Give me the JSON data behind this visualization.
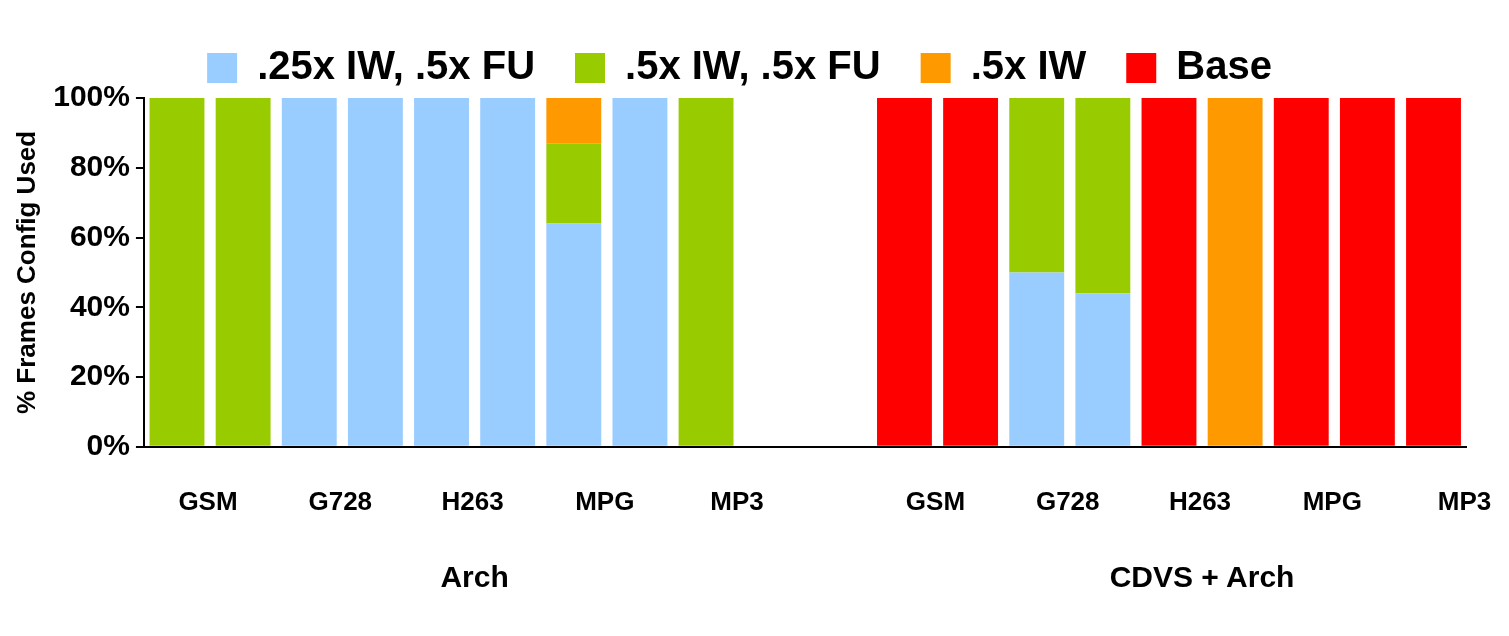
{
  "chart_data": {
    "type": "bar",
    "stacked": true,
    "ylabel": "% Frames Config Used",
    "categories": [
      "GSM",
      null,
      "G728",
      null,
      "H263",
      null,
      "MPG",
      null,
      "MP3",
      null,
      null,
      "GSM",
      null,
      "G728",
      null,
      "H263",
      null,
      "MPG",
      null,
      "MP3"
    ],
    "series": [
      {
        "name": ".25x IW, .5x FU",
        "color": "#99ccff",
        "values": [
          0,
          0,
          100,
          100,
          100,
          100,
          64,
          100,
          0,
          null,
          null,
          0,
          0,
          50,
          44,
          0,
          0,
          0,
          0,
          0
        ]
      },
      {
        "name": ".5x IW, .5x FU",
        "color": "#99cc00",
        "values": [
          100,
          100,
          0,
          0,
          0,
          0,
          23,
          0,
          100,
          null,
          null,
          0,
          0,
          50,
          56,
          0,
          0,
          0,
          0,
          0
        ]
      },
      {
        "name": ".5x IW",
        "color": "#ff9900",
        "values": [
          0,
          0,
          0,
          0,
          0,
          0,
          13,
          0,
          0,
          null,
          null,
          0,
          0,
          0,
          0,
          0,
          100,
          0,
          0,
          0
        ]
      },
      {
        "name": "Base",
        "color": "#ff0000",
        "values": [
          0,
          0,
          0,
          0,
          0,
          0,
          0,
          0,
          0,
          null,
          null,
          100,
          100,
          0,
          0,
          100,
          0,
          100,
          100,
          100
        ]
      }
    ],
    "ylim": [
      0,
      100
    ],
    "yticks": [
      {
        "value": 0,
        "label": "0%"
      },
      {
        "value": 20,
        "label": "20%"
      },
      {
        "value": 40,
        "label": "40%"
      },
      {
        "value": 60,
        "label": "60%"
      },
      {
        "value": 80,
        "label": "80%"
      },
      {
        "value": 100,
        "label": "100%"
      }
    ],
    "annotations": [
      "Arch",
      "CDVS + Arch"
    ],
    "grid": false,
    "legend": "top"
  }
}
